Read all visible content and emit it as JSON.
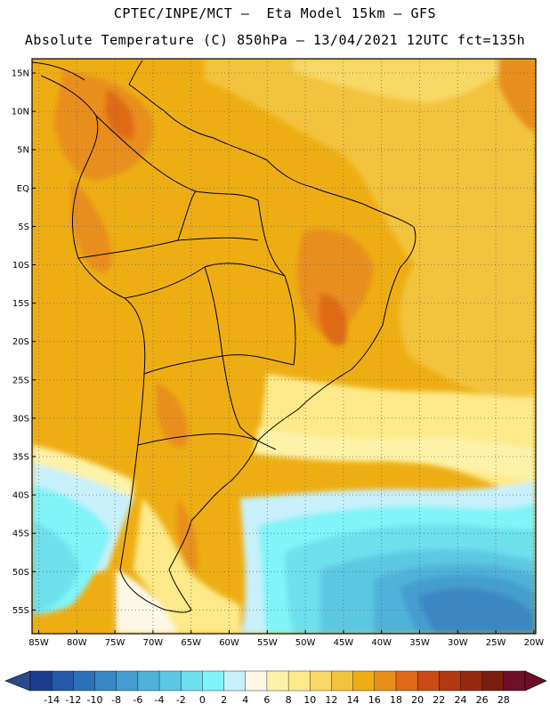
{
  "header": {
    "line1": "CPTEC/INPE/MCT –  Eta Model 15km – GFS",
    "line2": "Absolute Temperature (C) 850hPa – 13/04/2021 12UTC fct=135h"
  },
  "map": {
    "lat_labels": [
      "15N",
      "10N",
      "5N",
      "EQ",
      "5S",
      "10S",
      "15S",
      "20S",
      "25S",
      "30S",
      "35S",
      "40S",
      "45S",
      "50S",
      "55S"
    ],
    "lon_labels": [
      "85W",
      "80W",
      "75W",
      "70W",
      "65W",
      "60W",
      "55W",
      "50W",
      "45W",
      "40W",
      "35W",
      "30W",
      "25W",
      "20W"
    ]
  },
  "colorbar": {
    "labels": [
      "-14",
      "-12",
      "-10",
      "-8",
      "-6",
      "-4",
      "-2",
      "0",
      "2",
      "4",
      "6",
      "8",
      "10",
      "12",
      "14",
      "16",
      "18",
      "20",
      "22",
      "24",
      "26",
      "28"
    ],
    "colors": [
      "#1d3d8c",
      "#2458a8",
      "#2d72b8",
      "#3a88c4",
      "#459dcf",
      "#4fb2d8",
      "#5dc8e2",
      "#6ee0ee",
      "#80f4f8",
      "#c8f0fa",
      "#fdf8e6",
      "#fdf3a8",
      "#fde989",
      "#f8d866",
      "#f2c43d",
      "#eeae13",
      "#e88e1a",
      "#de6a18",
      "#cc4a14",
      "#b23812",
      "#962a10",
      "#7a1e12",
      "#6d0f28"
    ],
    "under_color": "#2a4a8a",
    "over_color": "#6d0f28"
  }
}
